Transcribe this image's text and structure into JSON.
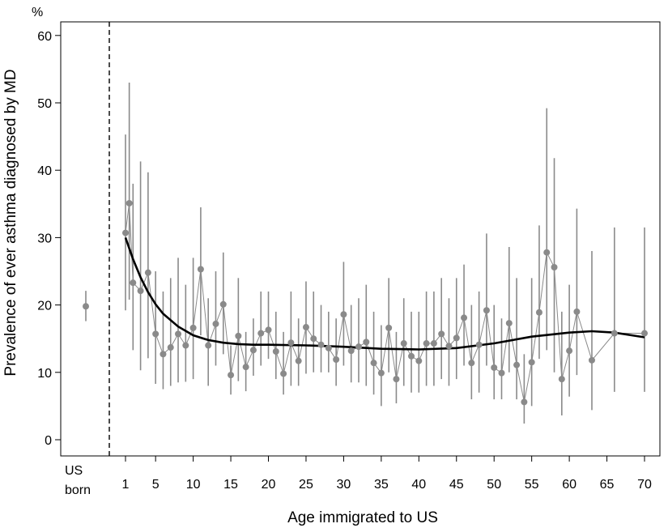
{
  "chart_data": {
    "type": "scatter",
    "y_unit": "%",
    "ylabel": "Prevalence of ever asthma diagnosed by MD",
    "xlabel": "Age immigrated to US",
    "ylim": [
      0,
      60
    ],
    "yticks": [
      0,
      10,
      20,
      30,
      40,
      50,
      60
    ],
    "xlim": [
      1,
      70
    ],
    "xticks": [
      1,
      5,
      10,
      15,
      20,
      25,
      30,
      35,
      40,
      45,
      50,
      55,
      60,
      65,
      70
    ],
    "us_born": {
      "label_line1": "US",
      "label_line2": "born",
      "value": 19.8,
      "ci": [
        17.6,
        22.1
      ]
    },
    "reference_line": "dashed vertical separator between US born and immigrants",
    "series": [
      {
        "kind": "points_with_ci",
        "x": [
          1,
          1.5,
          2,
          3,
          4,
          5,
          6,
          7,
          8,
          9,
          10,
          11,
          12,
          13,
          14,
          15,
          16,
          17,
          18,
          19,
          20,
          21,
          22,
          23,
          24,
          25,
          26,
          27,
          28,
          29,
          30,
          31,
          32,
          33,
          34,
          35,
          36,
          37,
          38,
          39,
          40,
          41,
          42,
          43,
          44,
          45,
          46,
          47,
          48,
          49,
          50,
          51,
          52,
          53,
          54,
          55,
          56,
          57,
          58,
          59,
          60,
          61,
          63,
          66,
          70
        ],
        "y": [
          30.7,
          35.1,
          23.3,
          22.1,
          24.8,
          15.7,
          12.7,
          13.7,
          15.7,
          14.0,
          16.6,
          25.3,
          14.0,
          17.2,
          20.1,
          9.6,
          15.4,
          10.8,
          13.3,
          15.8,
          16.3,
          13.1,
          9.8,
          14.4,
          11.7,
          16.7,
          15.0,
          14.1,
          13.6,
          11.9,
          18.6,
          13.2,
          13.8,
          14.5,
          11.4,
          9.9,
          16.6,
          9.0,
          14.3,
          12.4,
          11.7,
          14.3,
          14.3,
          15.7,
          13.9,
          15.1,
          18.1,
          11.4,
          14.1,
          19.2,
          10.7,
          9.9,
          17.3,
          11.1,
          5.6,
          11.5,
          18.9,
          27.8,
          25.6,
          9.0,
          13.2,
          19.0,
          11.8,
          15.8,
          15.8
        ],
        "ci_low": [
          19.2,
          20.8,
          13.3,
          10.3,
          12.1,
          8.3,
          7.5,
          8.0,
          8.5,
          8.6,
          9.0,
          15.5,
          8.0,
          11.0,
          12.7,
          6.7,
          8.7,
          7.2,
          9.5,
          11.0,
          12.0,
          9.0,
          6.7,
          8.0,
          8.0,
          9.8,
          10.0,
          10.0,
          10.0,
          8.0,
          11.0,
          8.5,
          8.5,
          8.0,
          6.7,
          5.0,
          10.0,
          5.4,
          8.0,
          7.0,
          7.0,
          8.0,
          8.0,
          9.0,
          8.0,
          9.0,
          11.0,
          6.0,
          7.0,
          11.0,
          6.0,
          6.0,
          10.0,
          6.0,
          2.4,
          5.0,
          12.0,
          13.3,
          10.0,
          3.6,
          6.4,
          9.6,
          4.4,
          7.1,
          7.1
        ],
        "ci_high": [
          45.3,
          53.0,
          38.0,
          41.3,
          39.7,
          25.0,
          22.0,
          24.0,
          27.0,
          23.0,
          27.0,
          34.5,
          21.0,
          25.0,
          27.8,
          14.0,
          24.0,
          16.0,
          18.0,
          22.0,
          22.0,
          19.0,
          16.0,
          22.0,
          18.0,
          23.5,
          22.0,
          20.0,
          19.0,
          18.0,
          26.4,
          20.0,
          21.0,
          23.0,
          19.0,
          17.0,
          24.0,
          16.0,
          21.0,
          19.0,
          19.0,
          22.0,
          22.0,
          24.0,
          21.0,
          24.0,
          26.0,
          20.0,
          22.0,
          30.6,
          20.0,
          18.0,
          28.6,
          24.0,
          12.7,
          24.0,
          31.8,
          49.2,
          41.8,
          19.0,
          23.0,
          34.3,
          28.0,
          31.5,
          31.5
        ]
      },
      {
        "kind": "smooth_fit",
        "x": [
          1,
          2,
          3,
          4,
          5,
          6,
          8,
          10,
          12,
          14,
          16,
          18,
          20,
          25,
          30,
          35,
          40,
          45,
          50,
          55,
          60,
          63,
          66,
          70
        ],
        "y": [
          30.0,
          26.8,
          24.1,
          21.9,
          20.1,
          18.7,
          16.8,
          15.5,
          14.8,
          14.4,
          14.2,
          14.1,
          14.1,
          14.0,
          13.8,
          13.5,
          13.4,
          13.6,
          14.3,
          15.3,
          15.9,
          16.1,
          15.9,
          15.2
        ]
      }
    ]
  }
}
